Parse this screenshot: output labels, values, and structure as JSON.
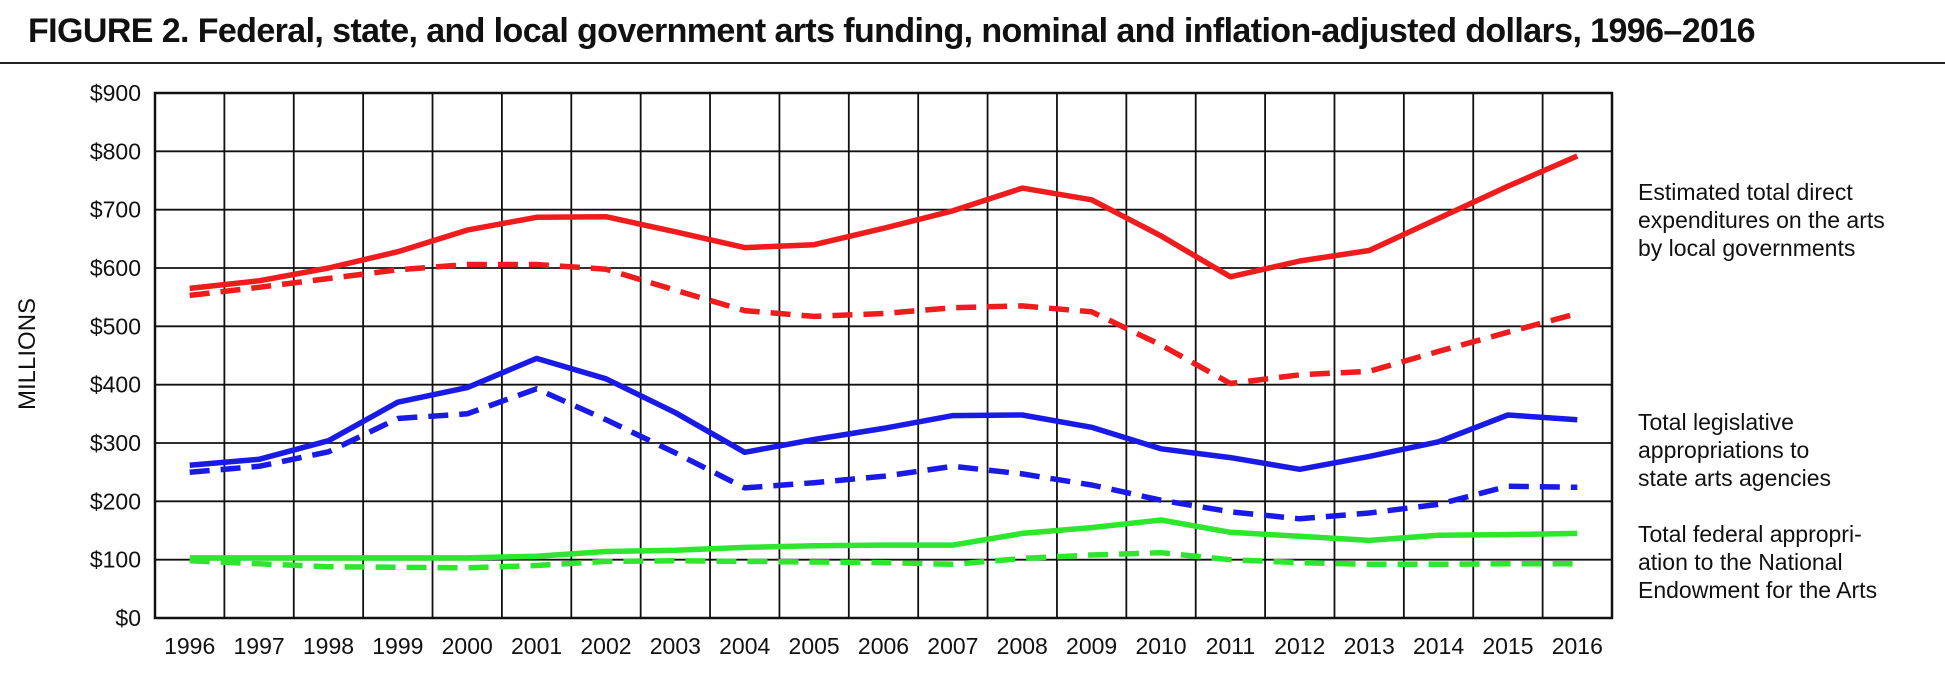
{
  "title": "FIGURE 2. Federal, state, and local government arts funding, nominal and inflation-adjusted dollars, 1996–2016",
  "chart_data": {
    "type": "line",
    "x": [
      1996,
      1997,
      1998,
      1999,
      2000,
      2001,
      2002,
      2003,
      2004,
      2005,
      2006,
      2007,
      2008,
      2009,
      2010,
      2011,
      2012,
      2013,
      2014,
      2015,
      2016
    ],
    "xlabel": "",
    "ylabel": "MILLIONS",
    "ylim": [
      0,
      900
    ],
    "yticks": [
      0,
      100,
      200,
      300,
      400,
      500,
      600,
      700,
      800,
      900
    ],
    "ytick_labels": [
      "$0",
      "$100",
      "$200",
      "$300",
      "$400",
      "$500",
      "$600",
      "$700",
      "$800",
      "$900"
    ],
    "grid": true,
    "legend_placement": "right",
    "series": [
      {
        "group": "local",
        "style": "solid",
        "color": "#ee1c1c",
        "values": [
          565,
          578,
          600,
          628,
          665,
          687,
          688,
          662,
          635,
          640,
          668,
          698,
          737,
          717,
          655,
          585,
          612,
          630,
          685,
          740,
          792
        ]
      },
      {
        "group": "local",
        "style": "dashed",
        "color": "#ee1c1c",
        "values": [
          553,
          567,
          582,
          597,
          606,
          606,
          598,
          562,
          527,
          517,
          522,
          532,
          535,
          525,
          468,
          402,
          417,
          423,
          457,
          490,
          522
        ]
      },
      {
        "group": "state",
        "style": "solid",
        "color": "#1a1ae6",
        "values": [
          262,
          272,
          304,
          370,
          395,
          445,
          410,
          352,
          284,
          306,
          325,
          347,
          348,
          327,
          290,
          275,
          255,
          277,
          302,
          348,
          340
        ]
      },
      {
        "group": "state",
        "style": "dashed",
        "color": "#1a1ae6",
        "values": [
          250,
          260,
          285,
          342,
          350,
          393,
          340,
          283,
          223,
          232,
          243,
          260,
          247,
          228,
          202,
          182,
          170,
          180,
          195,
          226,
          224
        ]
      },
      {
        "group": "federal",
        "style": "solid",
        "color": "#2ee62e",
        "values": [
          103,
          103,
          103,
          103,
          103,
          106,
          114,
          116,
          121,
          124,
          125,
          125,
          145,
          155,
          168,
          147,
          140,
          133,
          142,
          143,
          145
        ]
      },
      {
        "group": "federal",
        "style": "dashed",
        "color": "#2ee62e",
        "values": [
          98,
          93,
          88,
          87,
          86,
          90,
          97,
          98,
          97,
          96,
          95,
          92,
          102,
          108,
          112,
          100,
          95,
          92,
          92,
          93,
          93
        ]
      }
    ],
    "annotations": [
      {
        "id": "local",
        "text": "Estimated total direct\nexpenditures on the arts\nby local governments"
      },
      {
        "id": "state",
        "text": "Total legislative\nappropriations to\nstate arts agencies"
      },
      {
        "id": "federal",
        "text": "Total federal appropri-\nation to the National\nEndowment for the Arts"
      }
    ]
  }
}
